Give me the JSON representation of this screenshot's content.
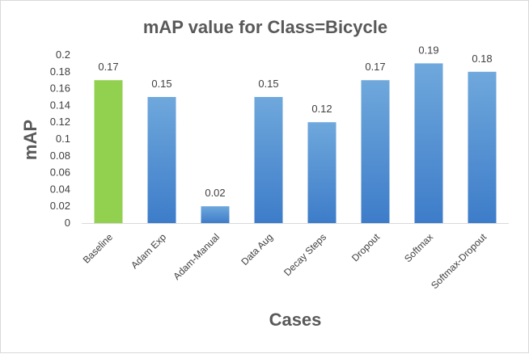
{
  "chart_data": {
    "type": "bar",
    "title": "mAP value for Class=Bicycle",
    "xlabel": "Cases",
    "ylabel": "mAP",
    "categories": [
      "Baseline",
      "Adam Exp",
      "Adam-Manual",
      "Data Aug",
      "Decay Steps",
      "Dropout",
      "Softmax",
      "Softmax-Dropout"
    ],
    "values": [
      0.17,
      0.15,
      0.02,
      0.15,
      0.12,
      0.17,
      0.19,
      0.18
    ],
    "data_labels": [
      "0.17",
      "0.15",
      "0.02",
      "0.15",
      "0.12",
      "0.17",
      "0.19",
      "0.18"
    ],
    "y_ticks": [
      "0",
      "0.02",
      "0.04",
      "0.06",
      "0.08",
      "0.1",
      "0.12",
      "0.14",
      "0.16",
      "0.18",
      "0.2"
    ],
    "ylim": [
      0,
      0.2
    ],
    "grid": false,
    "legend": "none",
    "colors": {
      "highlight_bar": "#92d050",
      "bar_top": "#6fa8dc",
      "bar_bottom": "#3d7cc9",
      "axis": "#d9d9d9",
      "text": "#404040",
      "title": "#595959"
    },
    "highlight_index": 0
  }
}
